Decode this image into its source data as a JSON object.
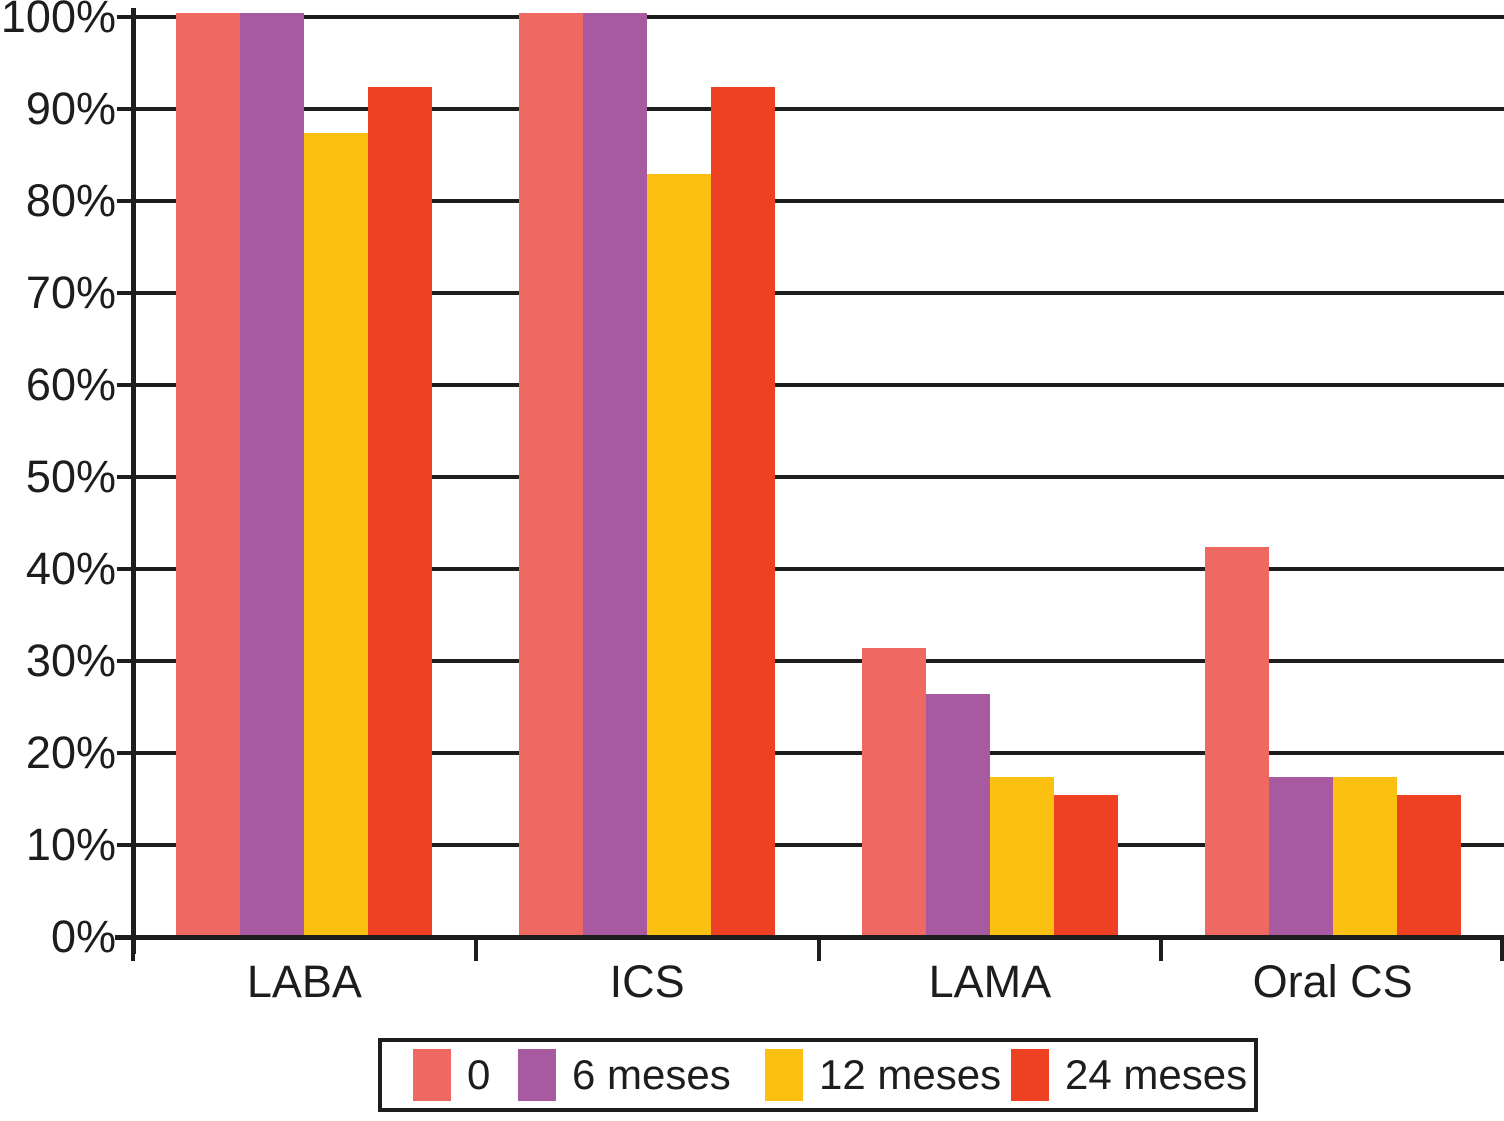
{
  "chart_data": {
    "type": "bar",
    "title": "",
    "categories": [
      "LABA",
      "ICS",
      "LAMA",
      "Oral CS"
    ],
    "series": [
      {
        "name": "0",
        "color": "#ef6962",
        "values": [
          100,
          100,
          31,
          42
        ]
      },
      {
        "name": "6 meses",
        "color": "#a85aa0",
        "values": [
          100,
          100,
          26,
          17
        ]
      },
      {
        "name": "12 meses",
        "color": "#fcc013",
        "values": [
          87,
          82.5,
          17,
          17
        ]
      },
      {
        "name": "24 meses",
        "color": "#ee4023",
        "values": [
          92,
          92,
          15,
          15
        ]
      }
    ],
    "xlabel": "",
    "ylabel": "",
    "ylim": [
      0,
      100
    ],
    "yticks": [
      "0%",
      "10%",
      "20%",
      "30%",
      "40%",
      "50%",
      "60%",
      "70%",
      "80%",
      "90%",
      "100%"
    ],
    "grid": true,
    "legend_position": "bottom-outside",
    "axis_color": "#1d1d1b",
    "background": "#ffffff"
  }
}
